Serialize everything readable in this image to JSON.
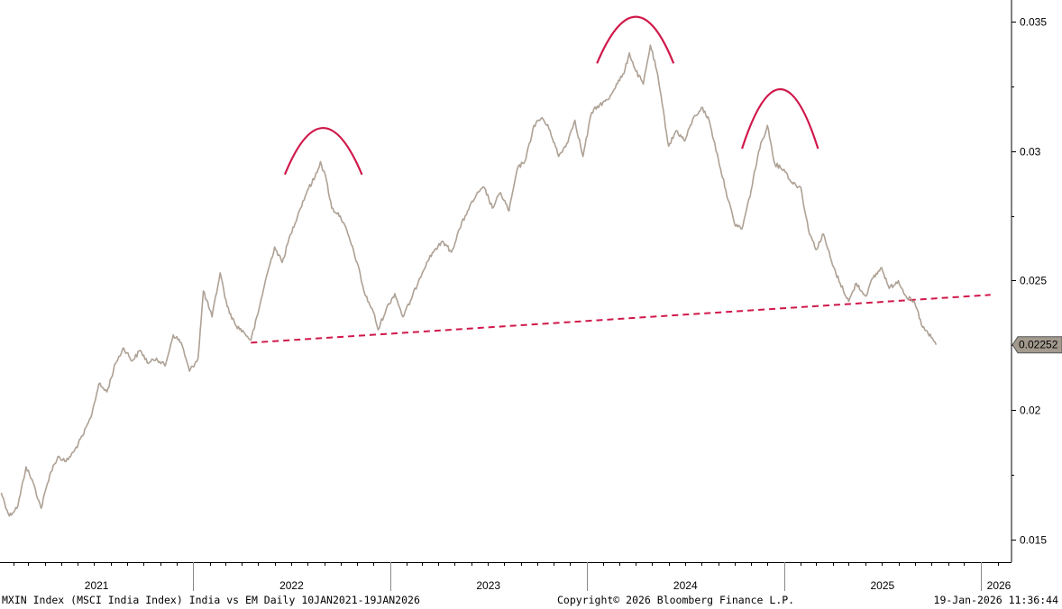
{
  "chart_data": {
    "type": "line",
    "footer_left": "MXIN Index (MSCI India Index) India vs EM Daily 10JAN2021-19JAN2026",
    "footer_center": "Copyright© 2026 Bloomberg Finance L.P.",
    "footer_right": "19-Jan-2026 11:36:44",
    "ylim": [
      0.0145,
      0.0355
    ],
    "yticks": [
      {
        "value": 0.015,
        "label": "0.015"
      },
      {
        "value": 0.02,
        "label": "0.02"
      },
      {
        "value": 0.025,
        "label": "0.025"
      },
      {
        "value": 0.03,
        "label": "0.03"
      },
      {
        "value": 0.035,
        "label": "0.035"
      }
    ],
    "x_labels": [
      "2021",
      "2022",
      "2023",
      "2024",
      "2025",
      "2026"
    ],
    "last_value_label": "0.02252",
    "series_color": "#aea195",
    "annotation_color": "#d0184a",
    "series": [
      {
        "values": [
          [
            "2021-01-10",
            0.0168
          ],
          [
            "2021-01-25",
            0.0159
          ],
          [
            "2021-02-10",
            0.0163
          ],
          [
            "2021-02-25",
            0.0178
          ],
          [
            "2021-03-10",
            0.0172
          ],
          [
            "2021-03-25",
            0.0162
          ],
          [
            "2021-04-10",
            0.0175
          ],
          [
            "2021-04-25",
            0.0182
          ],
          [
            "2021-05-10",
            0.018
          ],
          [
            "2021-05-25",
            0.0184
          ],
          [
            "2021-06-10",
            0.019
          ],
          [
            "2021-06-25",
            0.0197
          ],
          [
            "2021-07-10",
            0.021
          ],
          [
            "2021-07-25",
            0.0207
          ],
          [
            "2021-08-10",
            0.0218
          ],
          [
            "2021-08-25",
            0.0224
          ],
          [
            "2021-09-10",
            0.0219
          ],
          [
            "2021-09-25",
            0.0223
          ],
          [
            "2021-10-10",
            0.0218
          ],
          [
            "2021-10-25",
            0.022
          ],
          [
            "2021-11-10",
            0.0217
          ],
          [
            "2021-11-25",
            0.0229
          ],
          [
            "2021-12-10",
            0.0226
          ],
          [
            "2021-12-25",
            0.0215
          ],
          [
            "2022-01-10",
            0.022
          ],
          [
            "2022-01-20",
            0.0246
          ],
          [
            "2022-02-05",
            0.0236
          ],
          [
            "2022-02-20",
            0.0253
          ],
          [
            "2022-03-05",
            0.024
          ],
          [
            "2022-03-20",
            0.0233
          ],
          [
            "2022-04-05",
            0.023
          ],
          [
            "2022-04-18",
            0.0227
          ],
          [
            "2022-05-01",
            0.0237
          ],
          [
            "2022-05-15",
            0.025
          ],
          [
            "2022-06-01",
            0.0263
          ],
          [
            "2022-06-15",
            0.0257
          ],
          [
            "2022-07-01",
            0.0268
          ],
          [
            "2022-07-15",
            0.0276
          ],
          [
            "2022-08-01",
            0.0285
          ],
          [
            "2022-08-15",
            0.029
          ],
          [
            "2022-08-25",
            0.0296
          ],
          [
            "2022-09-05",
            0.0289
          ],
          [
            "2022-09-15",
            0.0278
          ],
          [
            "2022-10-01",
            0.0275
          ],
          [
            "2022-10-15",
            0.0268
          ],
          [
            "2022-11-01",
            0.0257
          ],
          [
            "2022-11-15",
            0.0245
          ],
          [
            "2022-12-01",
            0.0238
          ],
          [
            "2022-12-10",
            0.0231
          ],
          [
            "2022-12-25",
            0.0239
          ],
          [
            "2023-01-10",
            0.0245
          ],
          [
            "2023-01-25",
            0.0236
          ],
          [
            "2023-02-10",
            0.0243
          ],
          [
            "2023-02-25",
            0.0251
          ],
          [
            "2023-03-10",
            0.0257
          ],
          [
            "2023-03-25",
            0.0262
          ],
          [
            "2023-04-10",
            0.0265
          ],
          [
            "2023-04-25",
            0.0261
          ],
          [
            "2023-05-10",
            0.027
          ],
          [
            "2023-05-25",
            0.0277
          ],
          [
            "2023-06-10",
            0.0283
          ],
          [
            "2023-06-25",
            0.0286
          ],
          [
            "2023-07-10",
            0.0278
          ],
          [
            "2023-07-25",
            0.0284
          ],
          [
            "2023-08-10",
            0.0277
          ],
          [
            "2023-08-25",
            0.0293
          ],
          [
            "2023-09-10",
            0.0297
          ],
          [
            "2023-09-25",
            0.031
          ],
          [
            "2023-10-10",
            0.0313
          ],
          [
            "2023-10-25",
            0.0308
          ],
          [
            "2023-11-10",
            0.0298
          ],
          [
            "2023-11-25",
            0.0303
          ],
          [
            "2023-12-10",
            0.0312
          ],
          [
            "2023-12-25",
            0.0298
          ],
          [
            "2024-01-10",
            0.0315
          ],
          [
            "2024-01-25",
            0.0318
          ],
          [
            "2024-02-10",
            0.032
          ],
          [
            "2024-02-25",
            0.0326
          ],
          [
            "2024-03-10",
            0.033
          ],
          [
            "2024-03-20",
            0.0338
          ],
          [
            "2024-04-01",
            0.0331
          ],
          [
            "2024-04-15",
            0.0326
          ],
          [
            "2024-04-28",
            0.0341
          ],
          [
            "2024-05-10",
            0.0331
          ],
          [
            "2024-05-20",
            0.0318
          ],
          [
            "2024-06-01",
            0.0302
          ],
          [
            "2024-06-15",
            0.0308
          ],
          [
            "2024-07-01",
            0.0304
          ],
          [
            "2024-07-15",
            0.0312
          ],
          [
            "2024-08-01",
            0.0317
          ],
          [
            "2024-08-15",
            0.0312
          ],
          [
            "2024-09-01",
            0.0297
          ],
          [
            "2024-09-15",
            0.0285
          ],
          [
            "2024-10-01",
            0.0272
          ],
          [
            "2024-10-15",
            0.027
          ],
          [
            "2024-11-01",
            0.0285
          ],
          [
            "2024-11-15",
            0.03
          ],
          [
            "2024-12-01",
            0.031
          ],
          [
            "2024-12-15",
            0.0295
          ],
          [
            "2025-01-01",
            0.0293
          ],
          [
            "2025-01-15",
            0.0288
          ],
          [
            "2025-02-01",
            0.0286
          ],
          [
            "2025-02-15",
            0.027
          ],
          [
            "2025-03-01",
            0.0262
          ],
          [
            "2025-03-15",
            0.0268
          ],
          [
            "2025-04-01",
            0.0256
          ],
          [
            "2025-04-15",
            0.0249
          ],
          [
            "2025-05-01",
            0.0242
          ],
          [
            "2025-05-15",
            0.0249
          ],
          [
            "2025-06-01",
            0.0244
          ],
          [
            "2025-06-15",
            0.0251
          ],
          [
            "2025-07-01",
            0.0255
          ],
          [
            "2025-07-15",
            0.0247
          ],
          [
            "2025-08-01",
            0.025
          ],
          [
            "2025-08-15",
            0.0244
          ],
          [
            "2025-09-01",
            0.0241
          ],
          [
            "2025-09-15",
            0.0232
          ],
          [
            "2025-10-01",
            0.0228
          ],
          [
            "2025-10-10",
            0.02252
          ]
        ]
      }
    ],
    "neckline": {
      "start": [
        "2022-04-18",
        0.0226
      ],
      "end": [
        "2026-01-19",
        0.02445
      ]
    },
    "arcs": [
      {
        "start": [
          "2022-06-20",
          0.0291
        ],
        "peak": [
          "2022-08-30",
          0.0309
        ],
        "end": [
          "2022-11-10",
          0.0291
        ]
      },
      {
        "start": [
          "2024-01-20",
          0.0334
        ],
        "peak": [
          "2024-04-01",
          0.0352
        ],
        "end": [
          "2024-06-10",
          0.0334
        ]
      },
      {
        "start": [
          "2024-10-15",
          0.0301
        ],
        "peak": [
          "2024-12-25",
          0.0324
        ],
        "end": [
          "2025-03-05",
          0.0301
        ]
      }
    ]
  }
}
